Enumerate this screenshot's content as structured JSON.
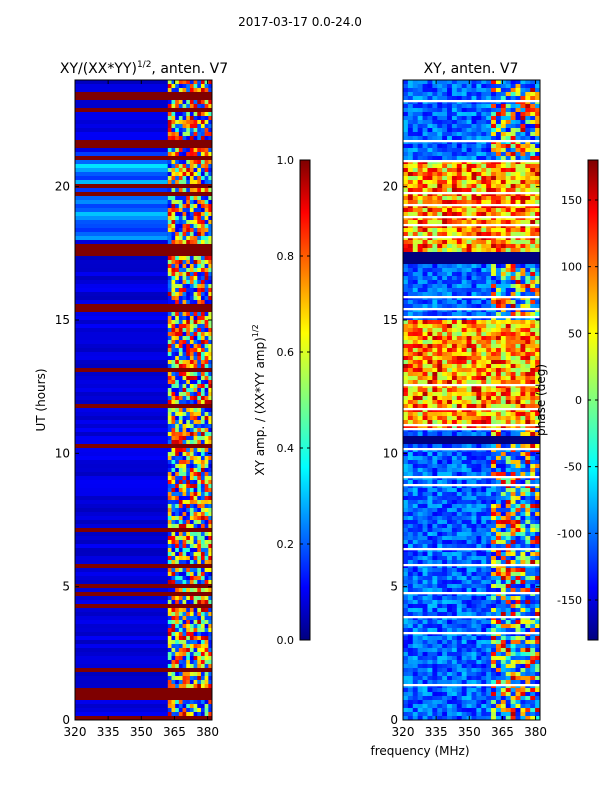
{
  "figure": {
    "suptitle": "2017-03-17 0.0-24.0",
    "xlabel": "frequency (MHz)"
  },
  "colors": {
    "jet": [
      "#00007f",
      "#0000ff",
      "#007fff",
      "#00ffff",
      "#7fff7f",
      "#ffff00",
      "#ff7f00",
      "#ff0000",
      "#7f0000"
    ]
  },
  "chart_data": [
    {
      "type": "heatmap",
      "title_main": "XY/(XX*YY)",
      "title_sup": "1/2",
      "title_rest": ", anten. V7",
      "ylabel": "UT (hours)",
      "xlim": [
        320,
        382
      ],
      "ylim": [
        0,
        24
      ],
      "xticks": [
        "320",
        "335",
        "350",
        "365",
        "380"
      ],
      "yticks": [
        "0",
        "5",
        "10",
        "15",
        "20"
      ],
      "colorbar": {
        "label_main": "XY amp. / (XX*YY amp)",
        "label_sup": "1/2",
        "range": [
          0.0,
          1.0
        ],
        "ticks": [
          "0.0",
          "0.2",
          "0.4",
          "0.6",
          "0.8",
          "1.0"
        ]
      },
      "flagged_time_bands_hours": [
        [
          23.3,
          23.5
        ],
        [
          21.4,
          21.7
        ],
        [
          17.4,
          17.9
        ],
        [
          15.3,
          15.6
        ],
        [
          10.2,
          10.4
        ],
        [
          7.0,
          7.2
        ],
        [
          0.95,
          1.2
        ],
        [
          0,
          0.1
        ]
      ],
      "rfi_band_mhz": [
        362,
        382
      ]
    },
    {
      "type": "heatmap",
      "title": "XY, anten. V7",
      "xlim": [
        320,
        382
      ],
      "ylim": [
        0,
        24
      ],
      "xticks": [
        "320",
        "335",
        "350",
        "365",
        "380"
      ],
      "yticks": [
        "0",
        "5",
        "10",
        "15",
        "20"
      ],
      "colorbar": {
        "label": "phase (deg)",
        "range": [
          -180,
          180
        ],
        "ticks": [
          "-150",
          "-100",
          "-50",
          "0",
          "50",
          "100",
          "150"
        ]
      },
      "high_phase_band_hours": [
        [
          17.6,
          21.0
        ],
        [
          11.0,
          15.0
        ]
      ],
      "flagged_time_bands_hours": [
        [
          17.1,
          17.6
        ],
        [
          10.4,
          10.6
        ]
      ]
    }
  ]
}
